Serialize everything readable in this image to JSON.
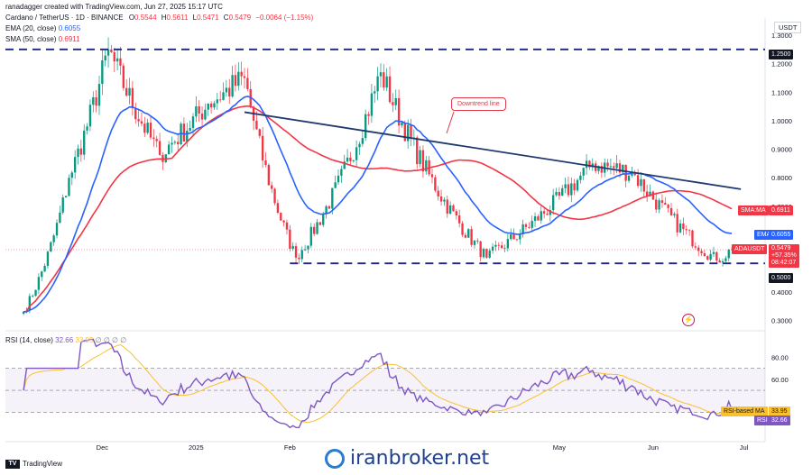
{
  "header": {
    "created_by": "ranadagger created with TradingView.com, Jun 27, 2025 15:17 UTC",
    "symbol_line": "Cardano / TetherUS · 1D · BINANCE",
    "ohlc": {
      "o_label": "O",
      "o": "0.5544",
      "h_label": "H",
      "h": "0.5611",
      "l_label": "L",
      "l": "0.5471",
      "c_label": "C",
      "c": "0.5479",
      "change": "−0.0064 (−1.15%)"
    },
    "ema_label": "EMA (20, close)",
    "ema_value": "0.6055",
    "sma_label": "SMA (50, close)",
    "sma_value": "0.6911",
    "currency": "USDT"
  },
  "price_tags": {
    "resistance": "1.2500",
    "support": "0.5000",
    "sma_tag": "SMA:MA",
    "sma_value": "0.6911",
    "ema_tag": "EMA",
    "ema_value": "0.6055",
    "symbol_tag": "ADAUSDT",
    "price": "0.5479",
    "pct": "+57.35%",
    "countdown": "08:42:07"
  },
  "annotation": {
    "downtrend": "Downtrend line"
  },
  "rsi": {
    "label": "RSI (14, close)",
    "value1": "32.66",
    "value2": "33.95",
    "extras": "∅ ∅ ∅ ∅",
    "ma_tag": "RSI-based MA",
    "ma_value": "33.95",
    "rsi_tag": "RSI",
    "rsi_value": "32.66"
  },
  "footer": {
    "tv": "TradingView",
    "brand": "iranbroker.net"
  },
  "colors": {
    "up": "#089981",
    "down": "#f23645",
    "ema": "#2962ff",
    "sma": "#f23645",
    "trendline": "#1e3a6e",
    "levels": "#1a237e",
    "rsi": "#7e57c2",
    "rsi_ma": "#fbc02d"
  },
  "chart_data": {
    "type": "candlestick",
    "price_axis": {
      "ticks": [
        "1.3000",
        "1.2000",
        "1.1000",
        "1.0000",
        "0.9000",
        "0.8000",
        "0.7000",
        "0.6000",
        "0.5000",
        "0.4000",
        "0.3000"
      ],
      "range": [
        0.27,
        1.36
      ]
    },
    "time_axis": {
      "ticks": [
        "Dec",
        "2025",
        "Feb",
        "May",
        "Jun",
        "Jul"
      ]
    },
    "horizontal_levels": [
      1.25,
      0.5
    ],
    "trendline": {
      "from": {
        "date": "2025-01-17",
        "price": 1.03
      },
      "to": {
        "date": "2025-06-30",
        "price": 0.76
      }
    },
    "key_points": [
      {
        "date": "2024-11-05",
        "price": 0.33
      },
      {
        "date": "2024-11-20",
        "price": 0.8
      },
      {
        "date": "2024-12-03",
        "price": 1.25
      },
      {
        "date": "2024-12-20",
        "price": 0.88
      },
      {
        "date": "2025-01-05",
        "price": 1.06
      },
      {
        "date": "2025-01-17",
        "price": 1.15
      },
      {
        "date": "2025-02-03",
        "price": 0.52
      },
      {
        "date": "2025-03-03",
        "price": 1.17
      },
      {
        "date": "2025-04-07",
        "price": 0.52
      },
      {
        "date": "2025-05-12",
        "price": 0.85
      },
      {
        "date": "2025-05-25",
        "price": 0.82
      },
      {
        "date": "2025-06-22",
        "price": 0.51
      },
      {
        "date": "2025-06-27",
        "price": 0.548
      }
    ],
    "ema20_last": 0.6055,
    "sma50_last": 0.6911,
    "rsi_axis": {
      "ticks": [
        "80.00",
        "60.00"
      ]
    },
    "rsi_last": 32.66,
    "rsi_ma_last": 33.95
  }
}
